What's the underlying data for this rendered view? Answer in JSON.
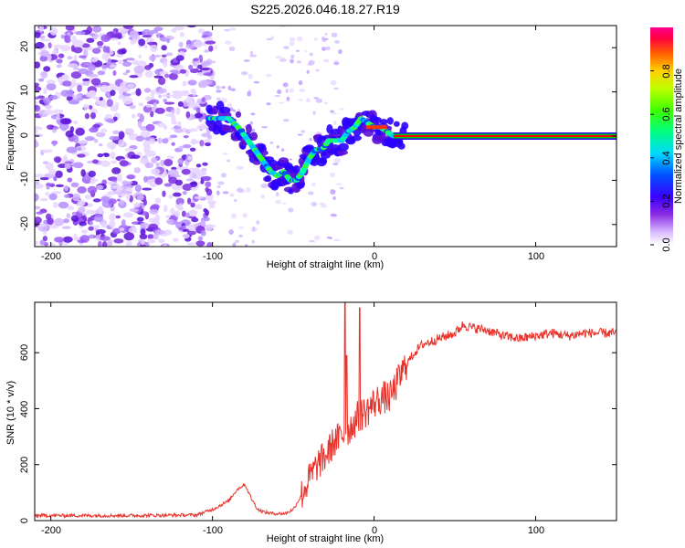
{
  "colors": {
    "snr_line": "#e8332c",
    "axes": "#000000",
    "signal_stripe": [
      "#00cc00",
      "#ff0000"
    ]
  },
  "chart_data": [
    {
      "type": "heatmap",
      "title": "S225.2026.046.18.27.R19",
      "xlabel": "Height of straight line (km)",
      "ylabel": "Frequency (Hz)",
      "xlim": [
        -210,
        150
      ],
      "ylim": [
        -25,
        25
      ],
      "xticks": [
        "-200",
        "-100",
        "0",
        "100"
      ],
      "xtick_values": [
        -200,
        -100,
        0,
        100
      ],
      "yticks": [
        "-20",
        "-10",
        "0",
        "10",
        "20"
      ],
      "ytick_values": [
        -20,
        -10,
        0,
        10,
        20
      ],
      "colorbar": {
        "label": "Normalized spectral amplitude",
        "range": [
          0,
          1
        ],
        "ticks": [
          "0.0",
          "0.2",
          "0.4",
          "0.6",
          "0.8"
        ],
        "tick_values": [
          0,
          0.2,
          0.4,
          0.6,
          0.8
        ]
      },
      "signal_track": {
        "x": [
          -102,
          -96,
          -90,
          -84,
          -80,
          -76,
          -72,
          -68,
          -64,
          -60,
          -56,
          -52,
          -48,
          -44,
          -40,
          -36,
          -32,
          -28,
          -24,
          -20,
          -16,
          -12,
          -8,
          -4,
          0,
          4,
          8,
          12,
          20,
          40,
          80,
          120,
          150
        ],
        "freq": [
          4,
          4,
          4,
          2,
          0,
          -2,
          -4,
          -6,
          -8,
          -9,
          -8,
          -10,
          -10,
          -8,
          -5,
          -3,
          -3,
          -1,
          -1,
          -1,
          1,
          2,
          4,
          3,
          2,
          2,
          1,
          0,
          0,
          0,
          0,
          0,
          0
        ]
      }
    },
    {
      "type": "line",
      "title": "",
      "xlabel": "Height of straight line (km)",
      "ylabel": "SNR (10 * v/v)",
      "xlim": [
        -210,
        150
      ],
      "ylim": [
        0,
        780
      ],
      "xticks": [
        "-200",
        "-100",
        "0",
        "100"
      ],
      "xtick_values": [
        -200,
        -100,
        0,
        100
      ],
      "yticks": [
        "0",
        "200",
        "400",
        "600"
      ],
      "ytick_values": [
        0,
        200,
        400,
        600
      ],
      "series": [
        {
          "name": "SNR",
          "x": [
            -210,
            -150,
            -110,
            -100,
            -90,
            -85,
            -80,
            -76,
            -72,
            -68,
            -62,
            -55,
            -50,
            -45,
            -40,
            -35,
            -30,
            -25,
            -20,
            -15,
            -10,
            -5,
            0,
            5,
            10,
            15,
            20,
            25,
            30,
            40,
            50,
            55,
            60,
            70,
            80,
            90,
            100,
            110,
            120,
            130,
            140,
            150
          ],
          "values": [
            18,
            18,
            20,
            40,
            70,
            110,
            130,
            80,
            40,
            30,
            25,
            25,
            40,
            90,
            150,
            200,
            230,
            280,
            300,
            330,
            370,
            390,
            420,
            440,
            440,
            500,
            560,
            600,
            630,
            650,
            670,
            700,
            690,
            680,
            660,
            650,
            660,
            670,
            660,
            670,
            670,
            670
          ]
        }
      ],
      "spikes": {
        "x": [
          -18,
          -17,
          -9
        ],
        "values": [
          780,
          590,
          760
        ]
      }
    }
  ]
}
